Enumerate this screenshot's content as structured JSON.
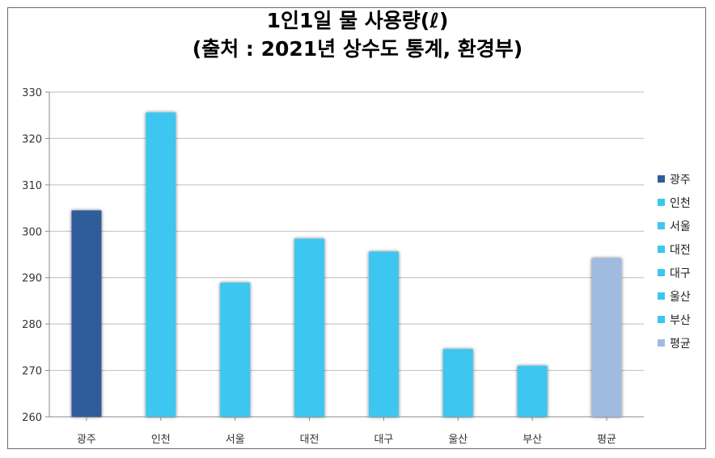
{
  "chart_data": {
    "type": "bar",
    "title": "1인1일 물 사용량(ℓ)",
    "subtitle": "(출처 : 2021년 상수도 통계, 환경부)",
    "categories": [
      "광주",
      "인천",
      "서울",
      "대전",
      "대구",
      "울산",
      "부산",
      "평균"
    ],
    "values": [
      304.5,
      325.6,
      288.9,
      298.4,
      295.6,
      274.6,
      271.0,
      294.2
    ],
    "colors": [
      "#2f5d99",
      "#3ec6ef",
      "#3ec6ef",
      "#3ec6ef",
      "#3ec6ef",
      "#3ec6ef",
      "#3ec6ef",
      "#9fbbdf"
    ],
    "ylim": [
      260,
      330
    ],
    "yticks": [
      "260",
      "270",
      "280",
      "290",
      "300",
      "310",
      "320",
      "330"
    ],
    "grid": true,
    "legend": {
      "position": "right",
      "entries": [
        "광주",
        "인천",
        "서울",
        "대전",
        "대구",
        "울산",
        "부산",
        "평균"
      ]
    }
  }
}
